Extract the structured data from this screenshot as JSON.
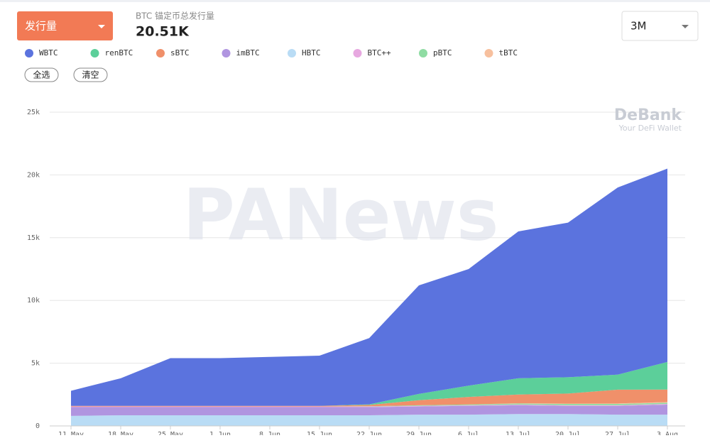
{
  "header": {
    "metric_button": "发行量",
    "subtitle": "BTC 锚定币总发行量",
    "total": "20.51K",
    "range": "3M",
    "select_all": "全选",
    "clear": "清空",
    "brand": "DeBank",
    "brand_tagline": "Your DeFi Wallet",
    "watermark": "PANews"
  },
  "chart_data": {
    "type": "stacked_area",
    "categories": [
      "11 May",
      "18 May",
      "25 May",
      "1 Jun",
      "8 Jun",
      "15 Jun",
      "22 Jun",
      "29 Jun",
      "6 Jul",
      "13 Jul",
      "20 Jul",
      "27 Jul",
      "3 Aug"
    ],
    "series": [
      {
        "name": "WBTC",
        "color": "#5b73de",
        "values": [
          1200,
          2200,
          3800,
          3800,
          3900,
          4000,
          5280,
          8650,
          9290,
          11700,
          12320,
          14910,
          15400
        ]
      },
      {
        "name": "renBTC",
        "color": "#5ccf9a",
        "values": [
          0,
          0,
          0,
          0,
          0,
          0,
          50,
          500,
          900,
          1300,
          1300,
          1200,
          2200
        ]
      },
      {
        "name": "sBTC",
        "color": "#f0906a",
        "values": [
          50,
          50,
          50,
          50,
          50,
          50,
          100,
          400,
          600,
          700,
          800,
          1100,
          1000
        ]
      },
      {
        "name": "imBTC",
        "color": "#b095e0",
        "values": [
          700,
          650,
          650,
          650,
          650,
          650,
          650,
          650,
          700,
          700,
          650,
          700,
          800
        ]
      },
      {
        "name": "HBTC",
        "color": "#b9dcf5",
        "values": [
          800,
          850,
          850,
          850,
          850,
          850,
          850,
          900,
          900,
          950,
          950,
          900,
          900
        ]
      },
      {
        "name": "BTC++",
        "color": "#e7a8e0",
        "values": [
          50,
          50,
          50,
          50,
          50,
          50,
          50,
          50,
          50,
          50,
          50,
          50,
          50
        ]
      },
      {
        "name": "pBTC",
        "color": "#8fdca3",
        "values": [
          0,
          0,
          0,
          0,
          0,
          0,
          20,
          50,
          60,
          80,
          100,
          100,
          100
        ]
      },
      {
        "name": "tBTC",
        "color": "#f7c09e",
        "values": [
          0,
          0,
          0,
          0,
          0,
          0,
          0,
          0,
          0,
          20,
          30,
          40,
          50
        ]
      }
    ],
    "stack_order": [
      "HBTC",
      "imBTC",
      "BTC++",
      "pBTC",
      "tBTC",
      "sBTC",
      "renBTC",
      "WBTC"
    ],
    "ylim": [
      0,
      25000
    ],
    "yticks": [
      0,
      {
        "value": 5000,
        "label": "5k"
      },
      {
        "value": 10000,
        "label": "10k"
      },
      {
        "value": 15000,
        "label": "15k"
      },
      {
        "value": 20000,
        "label": "20k"
      },
      {
        "value": 25000,
        "label": "25k"
      }
    ],
    "grid": true
  }
}
